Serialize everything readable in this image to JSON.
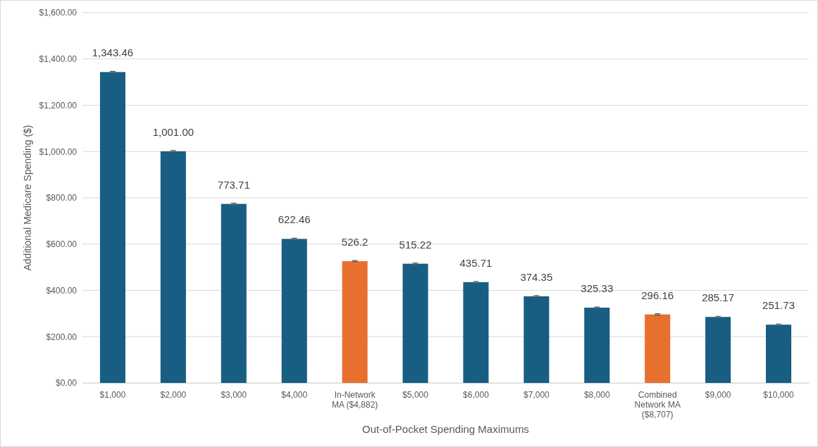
{
  "chart_data": {
    "type": "bar",
    "xlabel": "Out-of-Pocket Spending Maximums",
    "ylabel": "Additional Medicare Spending ($)",
    "categories": [
      "$1,000",
      "$2,000",
      "$3,000",
      "$4,000",
      "In-Network MA ($4,882)",
      "$5,000",
      "$6,000",
      "$7,000",
      "$8,000",
      "Combined Network MA ($8,707)",
      "$9,000",
      "$10,000"
    ],
    "values": [
      1343.46,
      1001.0,
      773.71,
      622.46,
      526.2,
      515.22,
      435.71,
      374.35,
      325.33,
      296.16,
      285.17,
      251.73
    ],
    "colors": [
      "#185e82",
      "#185e82",
      "#185e82",
      "#185e82",
      "#e8702f",
      "#185e82",
      "#185e82",
      "#185e82",
      "#185e82",
      "#e8702f",
      "#185e82",
      "#185e82"
    ],
    "errors": [
      3,
      3,
      3,
      3,
      3,
      3,
      3,
      3,
      3,
      3,
      3,
      3
    ],
    "value_labels": [
      "1,343.46",
      "1,001.00",
      "773.71",
      "622.46",
      "526.2",
      "515.22",
      "435.71",
      "374.35",
      "325.33",
      "296.16",
      "285.17",
      "251.73"
    ],
    "ylim": [
      0,
      1600
    ],
    "yticks": [
      {
        "value": 0,
        "label": "$0.00"
      },
      {
        "value": 200,
        "label": "$200.00"
      },
      {
        "value": 400,
        "label": "$400.00"
      },
      {
        "value": 600,
        "label": "$600.00"
      },
      {
        "value": 800,
        "label": "$800.00"
      },
      {
        "value": 1000,
        "label": "$1,000.00"
      },
      {
        "value": 1200,
        "label": "$1,200.00"
      },
      {
        "value": 1400,
        "label": "$1,400.00"
      },
      {
        "value": 1600,
        "label": "$1,600.00"
      }
    ],
    "grid": "y"
  }
}
